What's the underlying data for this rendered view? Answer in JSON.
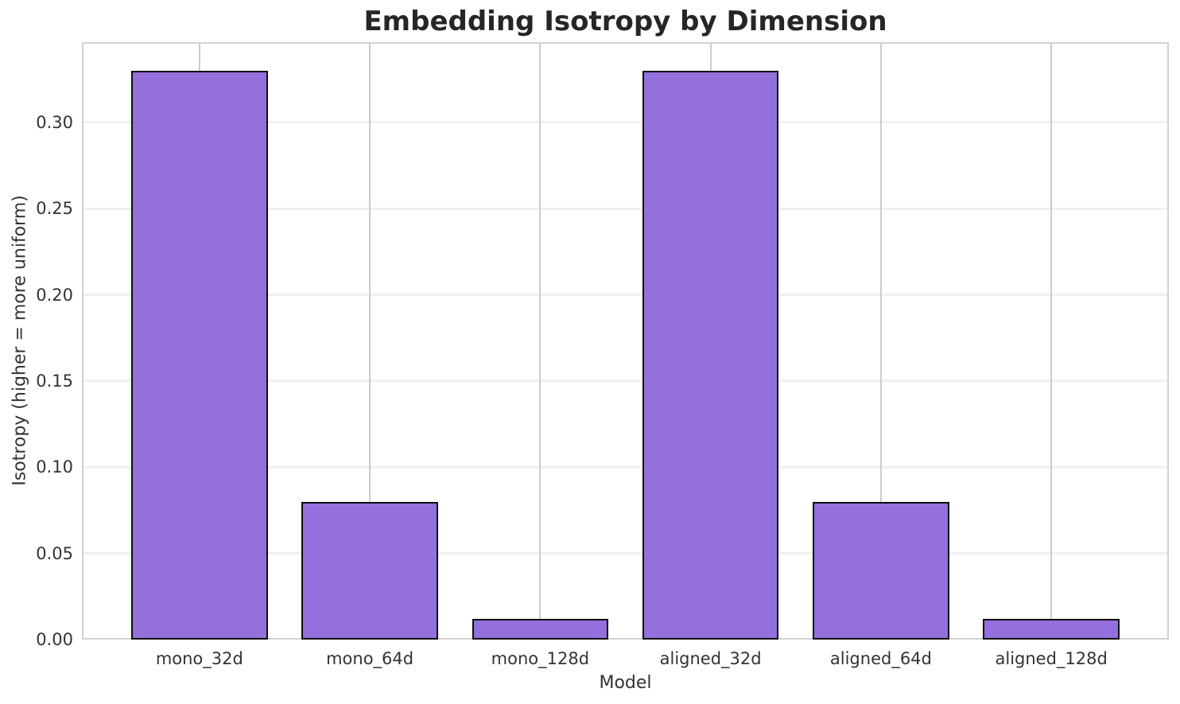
{
  "chart_data": {
    "type": "bar",
    "title": "Embedding Isotropy by Dimension",
    "xlabel": "Model",
    "ylabel": "Isotropy (higher = more uniform)",
    "categories": [
      "mono_32d",
      "mono_64d",
      "mono_128d",
      "aligned_32d",
      "aligned_64d",
      "aligned_128d"
    ],
    "values": [
      0.33,
      0.08,
      0.012,
      0.33,
      0.08,
      0.012
    ],
    "bar_width": 0.8,
    "xlim": [
      -0.69,
      5.69
    ],
    "ylim": [
      0,
      0.3465
    ],
    "yticks": [
      0,
      0.05,
      0.1,
      0.15,
      0.2,
      0.25,
      0.3
    ],
    "ytick_labels": [
      "0.00",
      "0.05",
      "0.10",
      "0.15",
      "0.20",
      "0.25",
      "0.30"
    ],
    "grid": true,
    "legend": "none",
    "colors": {
      "bar_fill": "#9370db",
      "bar_edge": "#0d0d0d",
      "grid_horizontal": "#f0f0f0",
      "grid_vertical": "#cbcbcb",
      "spine": "#d2d2d2",
      "title_text": "#262626",
      "tick_text": "#333333"
    }
  }
}
